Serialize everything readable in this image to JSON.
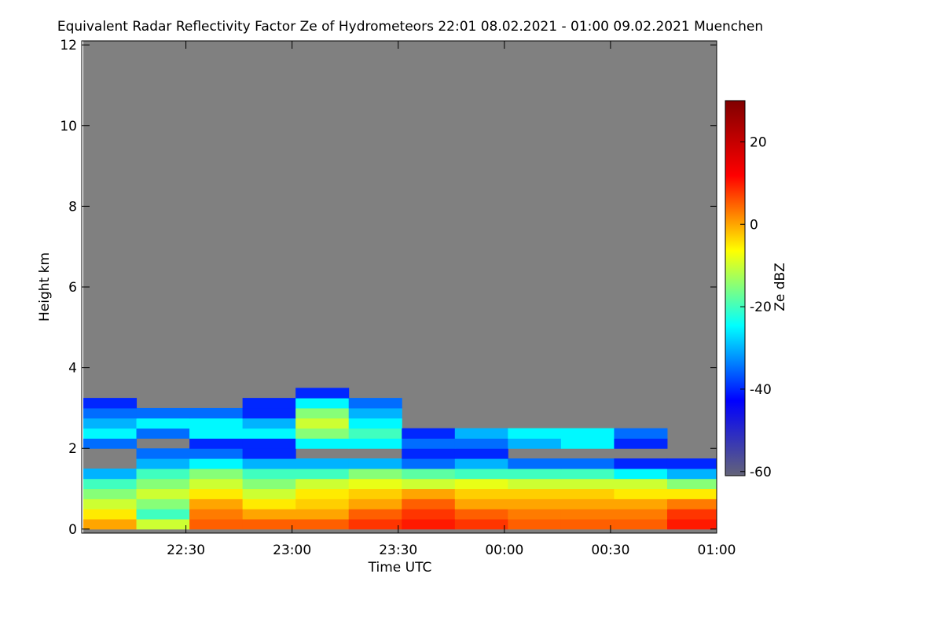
{
  "chart_data": {
    "type": "heatmap",
    "title": "Equivalent Radar Reflectivity Factor Ze of Hydrometeors   22:01 08.02.2021 - 01:00 09.02.2021 Muenchen",
    "x_label": "Time UTC",
    "y_label": "Height km",
    "colorbar_label": "Ze dBZ",
    "xlim": [
      1,
      180
    ],
    "xticks": [
      {
        "value": 30,
        "label": "22:30"
      },
      {
        "value": 60,
        "label": "23:00"
      },
      {
        "value": 90,
        "label": "23:30"
      },
      {
        "value": 120,
        "label": "00:00"
      },
      {
        "value": 150,
        "label": "00:30"
      },
      {
        "value": 180,
        "label": "01:00"
      }
    ],
    "ylim": [
      -0.1,
      12.1
    ],
    "yticks": [
      0,
      2,
      4,
      6,
      8,
      10,
      12
    ],
    "zlim": [
      -61,
      30
    ],
    "zticks": [
      -60,
      -40,
      -20,
      0,
      20
    ],
    "colorscale": [
      "#646478",
      "#0000ff",
      "#00ffff",
      "#ffff00",
      "#ff0000",
      "#800000"
    ],
    "background_color": "#808080",
    "x_bins": [
      1,
      16,
      31,
      46,
      61,
      76,
      91,
      106,
      121,
      136,
      151,
      166,
      180
    ],
    "y_bins": [
      0,
      0.25,
      0.5,
      0.75,
      1,
      1.25,
      1.5,
      1.75,
      2,
      2.25,
      2.5,
      2.75,
      3,
      3.25,
      3.5
    ],
    "z": [
      [
        0,
        -10,
        5,
        5,
        5,
        8,
        10,
        8,
        5,
        5,
        5,
        10
      ],
      [
        -5,
        -20,
        3,
        0,
        0,
        5,
        8,
        5,
        3,
        3,
        3,
        8
      ],
      [
        -10,
        -15,
        0,
        -5,
        -3,
        0,
        5,
        0,
        0,
        0,
        0,
        3
      ],
      [
        -15,
        -10,
        -5,
        -10,
        -5,
        -3,
        0,
        -3,
        -3,
        -3,
        -5,
        -5
      ],
      [
        -20,
        -15,
        -10,
        -15,
        -10,
        -8,
        -10,
        -8,
        -10,
        -10,
        -10,
        -15
      ],
      [
        -30,
        -20,
        -15,
        -20,
        -20,
        -15,
        -18,
        -20,
        -20,
        -20,
        -25,
        -30
      ],
      [
        null,
        -30,
        -25,
        -30,
        -30,
        -30,
        -35,
        -30,
        -35,
        -35,
        -40,
        -40
      ],
      [
        null,
        -35,
        -35,
        -40,
        null,
        null,
        -40,
        -40,
        null,
        null,
        null,
        null
      ],
      [
        -35,
        null,
        -40,
        -40,
        -25,
        -25,
        -35,
        -35,
        -30,
        -25,
        -40,
        null
      ],
      [
        -25,
        -35,
        -25,
        -25,
        -15,
        -20,
        -40,
        -30,
        -25,
        -25,
        -35,
        null
      ],
      [
        -30,
        -25,
        -25,
        -30,
        -10,
        -25,
        null,
        null,
        null,
        null,
        null,
        null
      ],
      [
        -35,
        -35,
        -35,
        -40,
        -15,
        -30,
        null,
        null,
        null,
        null,
        null,
        null
      ],
      [
        -40,
        null,
        null,
        -40,
        -25,
        -35,
        null,
        null,
        null,
        null,
        null,
        null
      ],
      [
        null,
        null,
        null,
        null,
        -40,
        null,
        null,
        null,
        null,
        null,
        null,
        null
      ]
    ]
  }
}
